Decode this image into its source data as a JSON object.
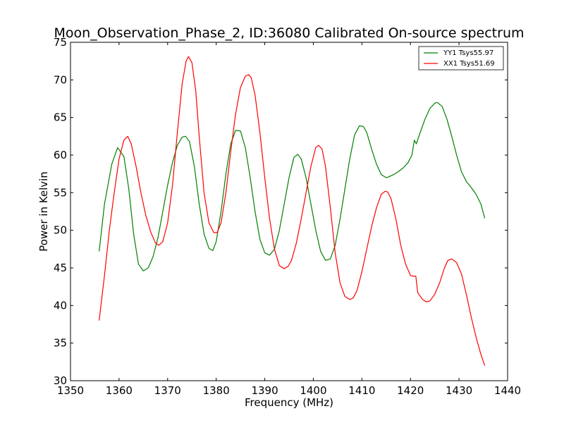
{
  "chart_data": {
    "type": "line",
    "title": "Moon_Observation_Phase_2, ID:36080 Calibrated On-source spectrum",
    "xlabel": "Frequency (MHz)",
    "ylabel": "Power in Kelvin",
    "xlim": [
      1350,
      1440
    ],
    "ylim": [
      30,
      75
    ],
    "xticks": [
      1350,
      1360,
      1370,
      1380,
      1390,
      1400,
      1410,
      1420,
      1430,
      1440
    ],
    "yticks": [
      30,
      35,
      40,
      45,
      50,
      55,
      60,
      65,
      70,
      75
    ],
    "grid": false,
    "legend_position": "top-right",
    "series": [
      {
        "name": "YY1 Tsys55.97",
        "color": "#008000",
        "x": [
          1355.9,
          1357,
          1358.5,
          1359.7,
          1361,
          1362,
          1363,
          1364,
          1365,
          1366,
          1367,
          1368,
          1369,
          1370,
          1371,
          1372,
          1373,
          1373.7,
          1374.5,
          1375.5,
          1376.5,
          1377.5,
          1378.5,
          1379.3,
          1380,
          1381,
          1382,
          1383,
          1384,
          1385,
          1386,
          1387,
          1388,
          1389,
          1390,
          1391,
          1392,
          1393,
          1394,
          1395,
          1396,
          1396.8,
          1397.5,
          1398.5,
          1399.5,
          1400.5,
          1401.5,
          1402.5,
          1403.5,
          1404.5,
          1405.5,
          1406.5,
          1407.5,
          1408.5,
          1409.5,
          1410.3,
          1411,
          1412,
          1413,
          1414,
          1415,
          1415.5,
          1416.5,
          1417.5,
          1418.5,
          1419.5,
          1420.3,
          1420.8,
          1421.2,
          1422,
          1423,
          1424,
          1425,
          1425.5,
          1426.5,
          1427.5,
          1428.5,
          1429.5,
          1430.5,
          1431.5,
          1432.5,
          1433.5,
          1434.5,
          1435.3
        ],
        "values": [
          47.2,
          53.5,
          58.8,
          61.0,
          59.8,
          55.5,
          49.5,
          45.5,
          44.6,
          45.0,
          46.5,
          49.0,
          52.5,
          56.0,
          59.0,
          61.3,
          62.4,
          62.5,
          61.8,
          58.5,
          53.5,
          49.5,
          47.6,
          47.3,
          48.5,
          52.5,
          57.5,
          61.5,
          63.3,
          63.2,
          61.0,
          57.0,
          52.5,
          48.8,
          47.0,
          46.7,
          47.5,
          50.0,
          53.5,
          57.0,
          59.7,
          60.1,
          59.5,
          57.0,
          53.5,
          50.0,
          47.2,
          46.0,
          46.2,
          48.0,
          51.5,
          55.5,
          59.5,
          62.7,
          63.9,
          63.8,
          63.0,
          60.8,
          58.8,
          57.4,
          57.0,
          57.1,
          57.4,
          57.8,
          58.3,
          59.0,
          60.0,
          62.0,
          61.5,
          63.0,
          64.8,
          66.2,
          66.9,
          67.0,
          66.5,
          64.8,
          62.5,
          60.0,
          57.8,
          56.5,
          55.7,
          54.8,
          53.5,
          51.6
        ]
      },
      {
        "name": "XX1 Tsys51.69",
        "color": "#ff0000",
        "x": [
          1355.9,
          1357,
          1358,
          1359,
          1360,
          1361,
          1361.8,
          1362.5,
          1363.5,
          1364.5,
          1365.5,
          1366.5,
          1367.5,
          1368.2,
          1369,
          1370,
          1371,
          1372,
          1373,
          1373.8,
          1374.3,
          1375,
          1375.8,
          1376.5,
          1377.5,
          1378.5,
          1379.5,
          1380.2,
          1381,
          1382,
          1383,
          1384,
          1385,
          1386,
          1386.7,
          1387.2,
          1388,
          1389,
          1390,
          1391,
          1392,
          1393,
          1394,
          1394.8,
          1395.5,
          1396.5,
          1397.5,
          1398.5,
          1399.5,
          1400.5,
          1401.1,
          1401.8,
          1402.5,
          1403.5,
          1404.5,
          1405.5,
          1406.5,
          1407.5,
          1408.2,
          1409,
          1410,
          1411,
          1412,
          1413,
          1414,
          1414.8,
          1415.3,
          1416,
          1417,
          1418,
          1419,
          1420,
          1420.5,
          1421.1,
          1421.5,
          1422.5,
          1423.2,
          1424,
          1425,
          1426,
          1427,
          1427.7,
          1428.5,
          1429.5,
          1430.5,
          1431.5,
          1432.5,
          1433.5,
          1434.5,
          1435.3
        ],
        "values": [
          38.0,
          44.0,
          50.0,
          55.0,
          59.5,
          62.0,
          62.5,
          61.5,
          58.5,
          55.0,
          52.0,
          49.8,
          48.3,
          48.0,
          48.5,
          51.0,
          56.0,
          63.0,
          69.5,
          72.5,
          73.1,
          72.3,
          68.5,
          62.5,
          55.0,
          51.0,
          49.7,
          49.7,
          51.0,
          55.0,
          60.5,
          65.5,
          69.0,
          70.5,
          70.7,
          70.3,
          68.0,
          63.0,
          57.0,
          51.5,
          47.5,
          45.3,
          44.9,
          45.2,
          46.0,
          48.3,
          51.5,
          55.0,
          58.5,
          61.0,
          61.3,
          60.8,
          58.5,
          53.0,
          47.0,
          43.0,
          41.2,
          40.8,
          41.0,
          42.0,
          44.5,
          47.5,
          50.5,
          53.0,
          54.8,
          55.2,
          55.1,
          54.2,
          51.5,
          48.0,
          45.5,
          44.0,
          43.9,
          43.9,
          41.7,
          40.8,
          40.5,
          40.6,
          41.5,
          43.0,
          45.0,
          46.0,
          46.2,
          45.7,
          44.2,
          41.5,
          38.5,
          35.8,
          33.5,
          32.0
        ]
      }
    ]
  }
}
